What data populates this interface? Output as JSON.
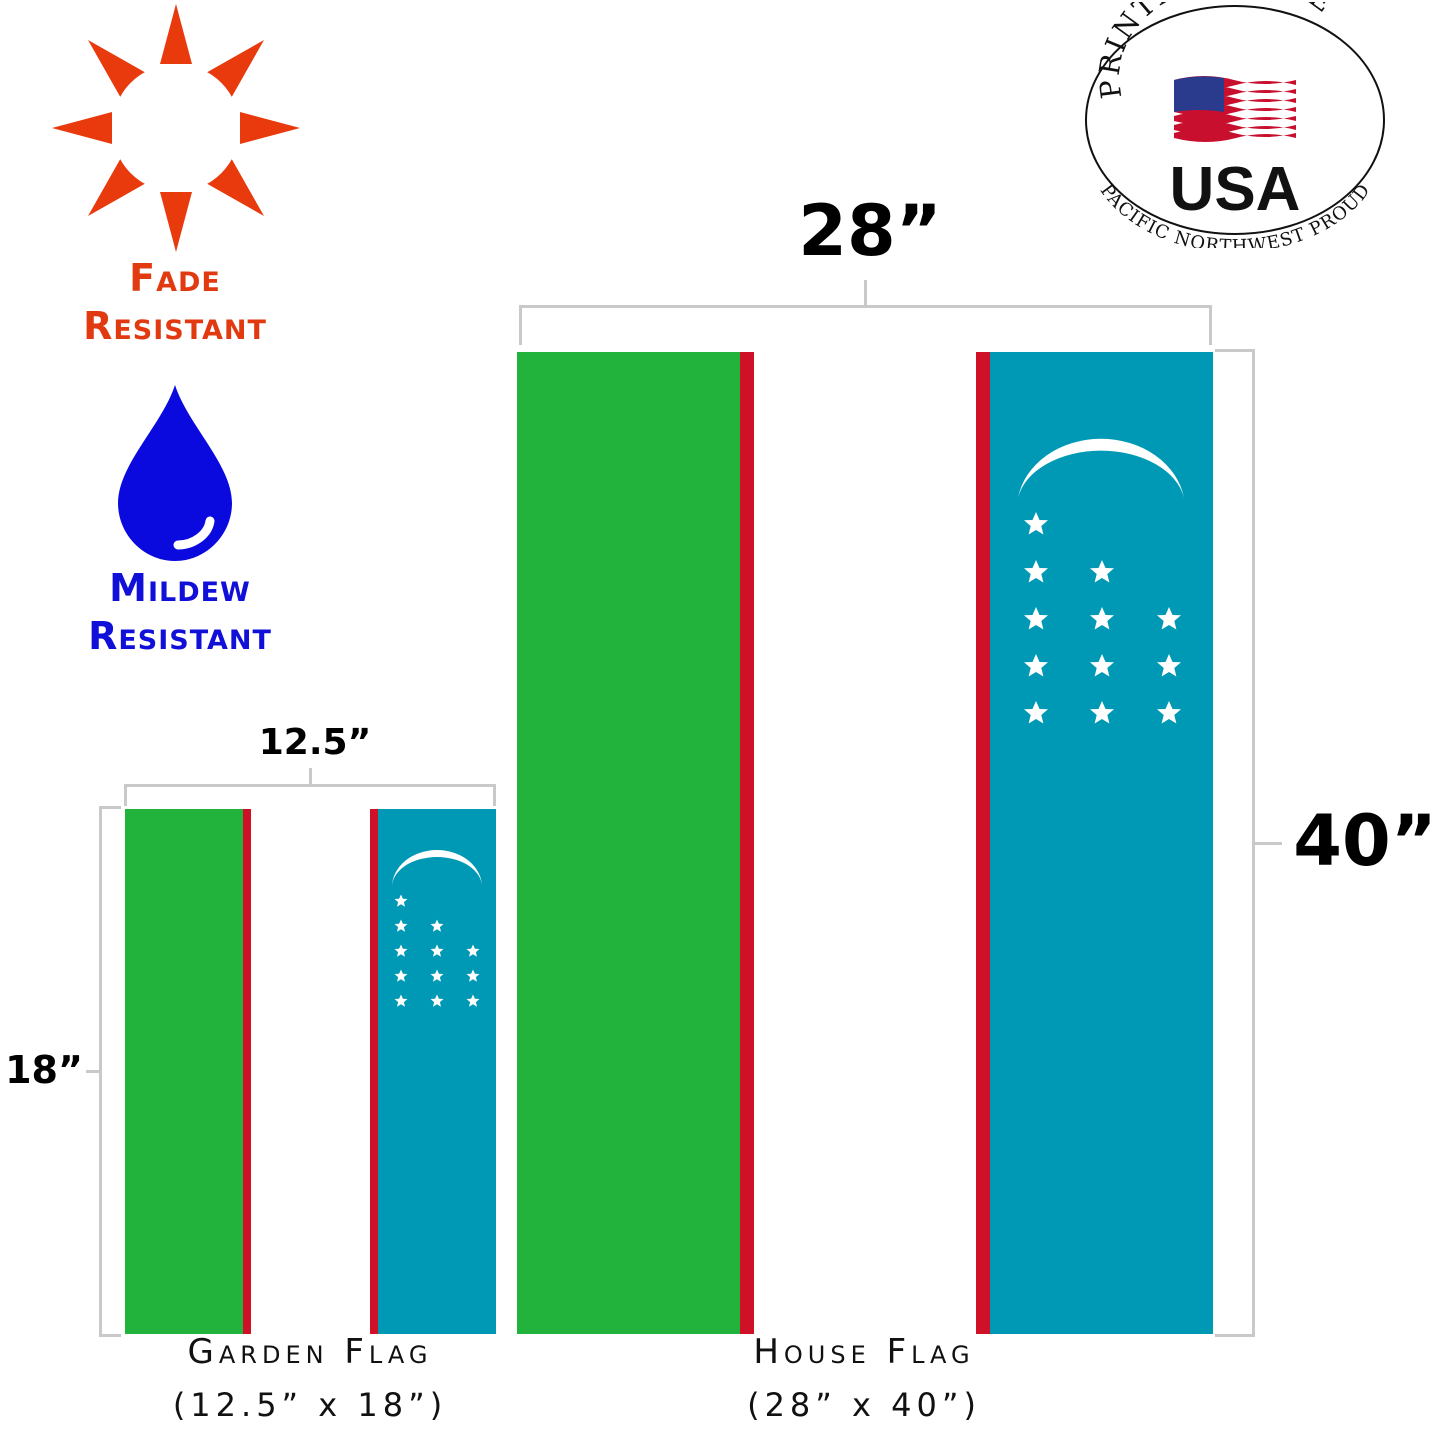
{
  "features": {
    "fade_line1": "Fade",
    "fade_line2": "Resistant",
    "mildew_line1": "Mildew",
    "mildew_line2": "Resistant",
    "icons": [
      "sun-icon",
      "water-drop-icon"
    ]
  },
  "badge": {
    "top_text": "PRINTED IN THE",
    "country": "USA",
    "bottom_text": "PACIFIC NORTHWEST PROUD",
    "icon": "us-flag-icon"
  },
  "dimensions": {
    "house_width": "28”",
    "house_height": "40”",
    "garden_width": "12.5”",
    "garden_height": "18”"
  },
  "captions": {
    "garden_title": "Garden Flag",
    "garden_size": "(12.5” x 18”)",
    "house_title": "House Flag",
    "house_size": "(28” x 40”)"
  },
  "colors": {
    "green": "#21b33b",
    "red": "#ce1126",
    "blue": "#0099b5",
    "fade_orange": "#e23a10",
    "mildew_blue": "#1010d8"
  }
}
